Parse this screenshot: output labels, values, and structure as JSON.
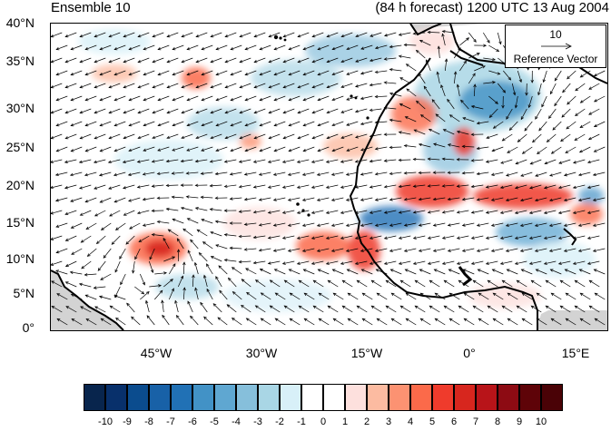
{
  "title_left": "Ensemble 10",
  "title_right": "(84 h forecast) 1200 UTC 13 Aug 2004",
  "map": {
    "type": "wind vector field over shaded anomaly",
    "lat_labels": [
      "40°N",
      "35°N",
      "30°N",
      "25°N",
      "20°N",
      "15°N",
      "10°N",
      "5°N",
      "0°"
    ],
    "lon_labels": [
      "45°W",
      "30°W",
      "15°W",
      "0°",
      "15°E"
    ],
    "coastline_color": "#000000",
    "land_mask_color": "#d3d3d3"
  },
  "reference_vector": {
    "magnitude": "10",
    "label": "Reference Vector"
  },
  "colorbar": {
    "labels": [
      "-10",
      "-9",
      "-8",
      "-7",
      "-6",
      "-5",
      "-4",
      "-3",
      "-2",
      "-1",
      "0",
      "1",
      "2",
      "3",
      "4",
      "5",
      "6",
      "7",
      "8",
      "9",
      "10"
    ],
    "colors": [
      "#08254d",
      "#08306b",
      "#0b4c8e",
      "#1861a7",
      "#2171b5",
      "#4292c6",
      "#5fa7d1",
      "#86bfdb",
      "#a9d6e5",
      "#d8f0f8",
      "#ffffff",
      "#ffffff",
      "#fde0dd",
      "#fcbba1",
      "#fc9272",
      "#fb6a4a",
      "#ef3b2c",
      "#d7261e",
      "#b81419",
      "#8d0b13",
      "#5e0308",
      "#4a0206"
    ]
  }
}
